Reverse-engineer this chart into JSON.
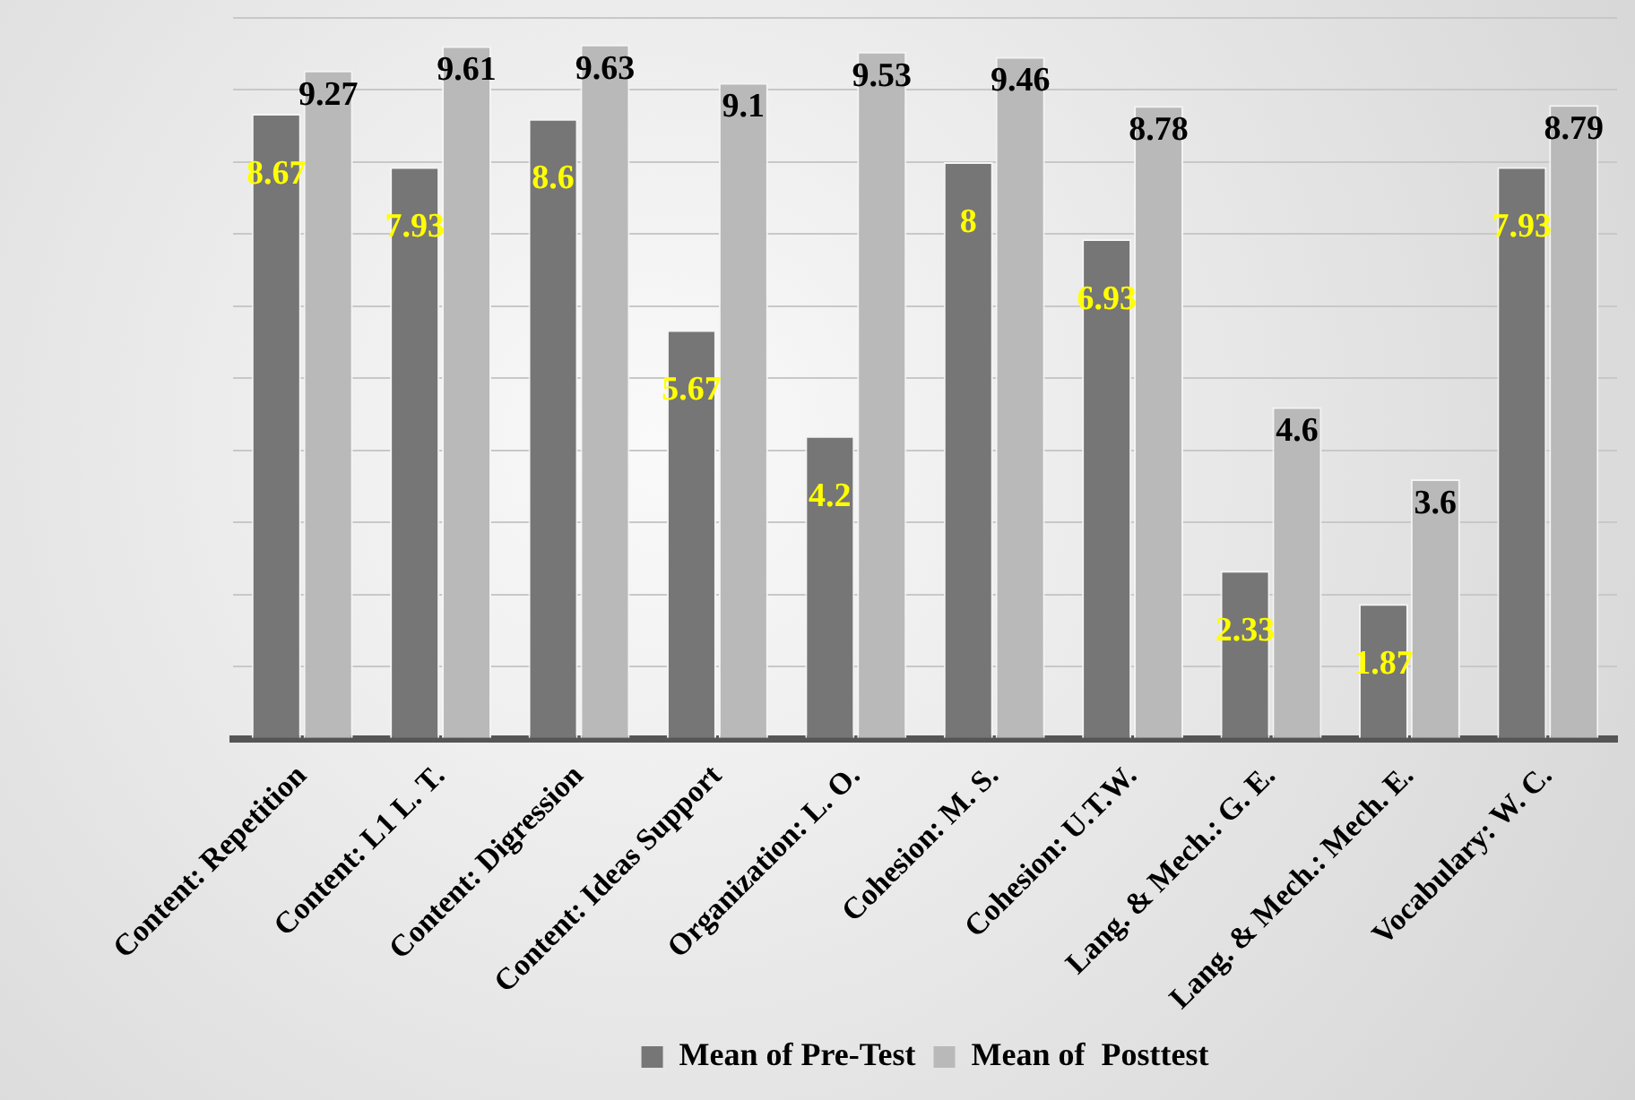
{
  "chart_data": {
    "type": "bar",
    "categories": [
      "Content: Repetition",
      "Content: L1 L. T.",
      "Content: Digression",
      "Content: Ideas Support",
      "Organization: L. O.",
      "Cohesion: M. S.",
      "Cohesion: U.T.W.",
      "Lang. & Mech.: G. E.",
      "Lang. & Mech.: Mech. E.",
      "Vocabulary: W. C."
    ],
    "series": [
      {
        "name": "Mean of Pre-Test",
        "color": "#767676",
        "values": [
          8.67,
          7.93,
          8.6,
          5.67,
          4.2,
          8,
          6.93,
          2.33,
          1.87,
          7.93
        ]
      },
      {
        "name": "Mean of  Posttest",
        "color": "#b9b9b9",
        "values": [
          9.27,
          9.61,
          9.63,
          9.1,
          9.53,
          9.46,
          8.78,
          4.6,
          3.6,
          8.79
        ]
      }
    ],
    "ylim": [
      0,
      10
    ],
    "yticks": [
      {
        "value": 0,
        "label": null
      },
      {
        "value": 1,
        "label": null
      },
      {
        "value": 2,
        "label": null
      },
      {
        "value": 3,
        "label": null
      },
      {
        "value": 4,
        "label": null
      },
      {
        "value": 5,
        "label": null
      },
      {
        "value": 6,
        "label": null
      },
      {
        "value": 7,
        "label": null
      },
      {
        "value": 8,
        "label": null
      },
      {
        "value": 9,
        "label": null
      },
      {
        "value": 10,
        "label": null
      }
    ],
    "tick_labels": "x",
    "grid": "y",
    "legend": "bottom",
    "data_labels": true
  }
}
